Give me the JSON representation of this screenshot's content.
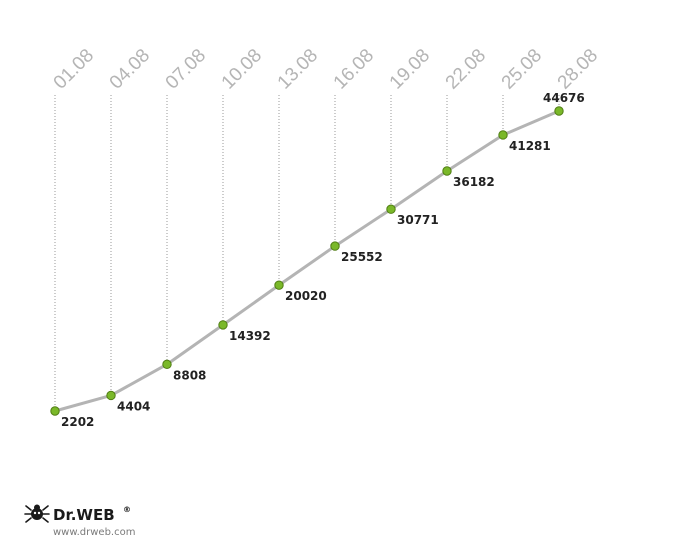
{
  "chart_data": {
    "type": "line",
    "title": "",
    "xlabel": "",
    "ylabel": "",
    "categories": [
      "01.08",
      "04.08",
      "07.08",
      "10.08",
      "13.08",
      "16.08",
      "19.08",
      "22.08",
      "25.08",
      "28.08"
    ],
    "values": [
      2202,
      4404,
      8808,
      14392,
      20020,
      25552,
      30771,
      36182,
      41281,
      44676
    ],
    "data_labels": [
      "2202",
      "4404",
      "8808",
      "14392",
      "20020",
      "25552",
      "30771",
      "36182",
      "41281",
      "44676"
    ],
    "ylim": [
      2202,
      44676
    ],
    "grid": "vertical dotted lines per category",
    "legend": "none",
    "colors": {
      "line": "#b4b4b4",
      "marker_fill": "#7ab829",
      "marker_stroke": "#4f7d12",
      "tick_label": "#b5b5b5",
      "gridline": "#9a9a9a",
      "data_label": "#222222"
    }
  },
  "branding": {
    "logo_text": "Dr.WEB",
    "registered_mark": "®",
    "url": "www.drweb.com",
    "logo_icon": "spider-icon"
  }
}
